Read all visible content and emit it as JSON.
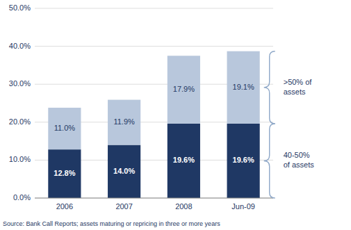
{
  "chart_data": {
    "type": "bar",
    "stacked": true,
    "categories": [
      "2006",
      "2007",
      "2008",
      "Jun-09"
    ],
    "series": [
      {
        "name": "40-50%\nof assets",
        "color": "#1F3864",
        "values": [
          12.8,
          14.0,
          19.6,
          19.6
        ],
        "value_labels": [
          "12.8%",
          "14.0%",
          "19.6%",
          "19.6%"
        ]
      },
      {
        "name": ">50% of\nassets",
        "color": "#B8C7DC",
        "values": [
          11.0,
          11.9,
          17.9,
          19.1
        ],
        "value_labels": [
          "11.0%",
          "11.9%",
          "17.9%",
          "19.1%"
        ]
      }
    ],
    "ylim": [
      0,
      50
    ],
    "yticks": [
      {
        "value": 0,
        "label": "0.0%"
      },
      {
        "value": 10,
        "label": "10.0%"
      },
      {
        "value": 20,
        "label": "20.0%"
      },
      {
        "value": 30,
        "label": "30.0%"
      },
      {
        "value": 40,
        "label": "40.0%"
      },
      {
        "value": 50,
        "label": "50.0%"
      }
    ],
    "grid": true,
    "data_labels": true,
    "legend": "right",
    "annotation": "Source: Bank Call Reports; assets maturing or repricing in three or more years"
  }
}
